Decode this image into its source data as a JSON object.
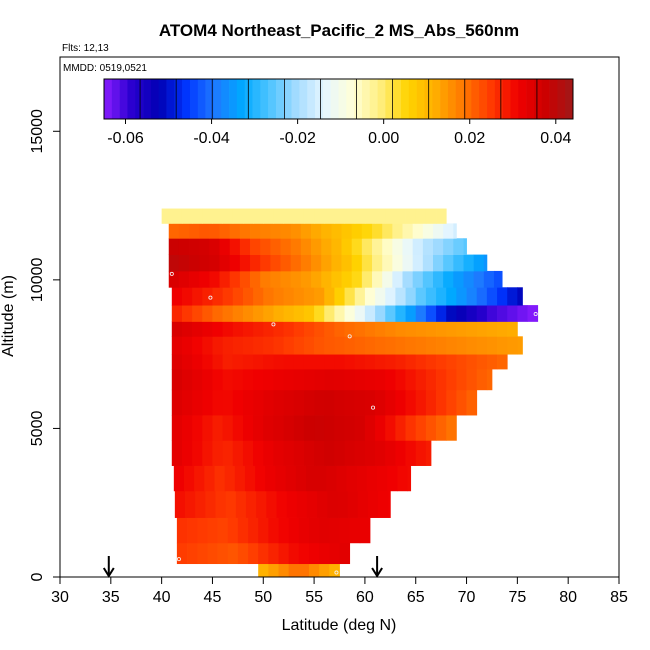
{
  "title": "ATOM4 Northeast_Pacific_2 MS_Abs_560nm",
  "flights_note": "Flts: 12,13",
  "dates_note": "MMDD: 0519,0521",
  "chart_data": {
    "type": "heatmap",
    "xlabel": "Latitude (deg N)",
    "ylabel": "Altitude (m)",
    "xlim": [
      30,
      85
    ],
    "ylim": [
      0,
      17500
    ],
    "x_ticks": [
      "30",
      "35",
      "40",
      "45",
      "50",
      "55",
      "60",
      "65",
      "70",
      "75",
      "80",
      "85"
    ],
    "y_ticks": [
      "0",
      "5000",
      "10000",
      "15000"
    ],
    "colorbar": {
      "min": -0.065,
      "max": 0.044,
      "tick_values": [
        -0.06,
        -0.04,
        -0.02,
        0.0,
        0.02,
        0.04
      ],
      "tick_labels": [
        "-0.06",
        "-0.04",
        "-0.02",
        "0.00",
        "0.02",
        "0.04"
      ],
      "colors": [
        "#8a1dff",
        "#2a00d0",
        "#0000b4",
        "#0036ff",
        "#1e78ff",
        "#00a8ff",
        "#4ec4ff",
        "#a6dcff",
        "#e6f6ff",
        "#ffffd8",
        "#ffef80",
        "#ffd400",
        "#ffae00",
        "#ff7800",
        "#ff3c00",
        "#f00000",
        "#cc0000",
        "#a01818"
      ]
    },
    "flight_marker_latitudes": [
      34.8,
      61.2
    ],
    "profile_points": [
      {
        "lat": 41.0,
        "alt": 10200
      },
      {
        "lat": 44.8,
        "alt": 9400
      },
      {
        "lat": 51.0,
        "alt": 8500
      },
      {
        "lat": 58.5,
        "alt": 8100
      },
      {
        "lat": 60.8,
        "alt": 5700
      },
      {
        "lat": 41.7,
        "alt": 600
      },
      {
        "lat": 57.2,
        "alt": 150
      },
      {
        "lat": 76.8,
        "alt": 8850
      }
    ],
    "bands": [
      {
        "y0": 0,
        "y1": 450,
        "x0": 49.5,
        "x1": 57.5,
        "v": [
          0.01,
          0.02,
          0.01
        ]
      },
      {
        "y0": 450,
        "y1": 1150,
        "x0": 41.5,
        "x1": 58.5,
        "v": [
          0.025,
          0.022,
          0.03,
          0.034
        ]
      },
      {
        "y0": 1150,
        "y1": 2000,
        "x0": 41.5,
        "x1": 60.5,
        "v": [
          0.026,
          0.024,
          0.03,
          0.034,
          0.032
        ]
      },
      {
        "y0": 2000,
        "y1": 2900,
        "x0": 41.3,
        "x1": 62.5,
        "v": [
          0.03,
          0.025,
          0.031,
          0.035,
          0.031
        ]
      },
      {
        "y0": 2900,
        "y1": 3750,
        "x0": 41.2,
        "x1": 64.5,
        "v": [
          0.032,
          0.026,
          0.032,
          0.036,
          0.033,
          0.03
        ]
      },
      {
        "y0": 3750,
        "y1": 4600,
        "x0": 41.0,
        "x1": 66.5,
        "v": [
          0.034,
          0.027,
          0.033,
          0.037,
          0.034,
          0.028
        ]
      },
      {
        "y0": 4600,
        "y1": 5450,
        "x0": 41.0,
        "x1": 69.0,
        "v": [
          0.034,
          0.028,
          0.034,
          0.038,
          0.036,
          0.026,
          0.018
        ]
      },
      {
        "y0": 5450,
        "y1": 6300,
        "x0": 41.0,
        "x1": 71.0,
        "v": [
          0.035,
          0.03,
          0.034,
          0.037,
          0.035,
          0.028,
          0.02
        ]
      },
      {
        "y0": 6300,
        "y1": 7000,
        "x0": 41.0,
        "x1": 72.5,
        "v": [
          0.036,
          0.03,
          0.032,
          0.034,
          0.032,
          0.026,
          0.02
        ]
      },
      {
        "y0": 7000,
        "y1": 7500,
        "x0": 41.0,
        "x1": 74.0,
        "v": [
          0.035,
          0.028,
          0.03,
          0.03,
          0.028,
          0.024,
          0.02
        ]
      },
      {
        "y0": 7500,
        "y1": 8100,
        "x0": 41.0,
        "x1": 75.5,
        "v": [
          0.034,
          0.028,
          0.026,
          0.022,
          0.02,
          0.018,
          0.016,
          0.014
        ]
      },
      {
        "y0": 8100,
        "y1": 8600,
        "x0": 41.0,
        "x1": 75.0,
        "v": [
          0.036,
          0.03,
          0.026,
          0.02,
          0.016,
          0.014,
          0.012
        ]
      },
      {
        "y0": 8600,
        "y1": 9150,
        "x0": 41.0,
        "x1": 77.0,
        "v": [
          0.028,
          0.02,
          0.014,
          0.008,
          -0.01,
          -0.03,
          -0.05,
          -0.06,
          -0.065
        ]
      },
      {
        "y0": 9150,
        "y1": 9750,
        "x0": 41.0,
        "x1": 75.5,
        "v": [
          0.032,
          0.026,
          0.018,
          0.014,
          -0.008,
          -0.026,
          -0.038,
          -0.052
        ]
      },
      {
        "y0": 9750,
        "y1": 10300,
        "x0": 40.7,
        "x1": 73.5,
        "v": [
          0.036,
          0.03,
          0.018,
          0.014,
          0.004,
          -0.02,
          -0.034,
          -0.044
        ]
      },
      {
        "y0": 10300,
        "y1": 10850,
        "x0": 40.7,
        "x1": 72.0,
        "v": [
          0.04,
          0.036,
          0.026,
          0.018,
          0.008,
          -0.008,
          -0.024,
          -0.036
        ]
      },
      {
        "y0": 10850,
        "y1": 11400,
        "x0": 40.7,
        "x1": 70.0,
        "v": [
          0.038,
          0.036,
          0.024,
          0.018,
          0.01,
          -0.004,
          -0.018,
          -0.026
        ]
      },
      {
        "y0": 11400,
        "y1": 11900,
        "x0": 40.7,
        "x1": 69.0,
        "v": [
          0.02,
          0.022,
          0.018,
          0.016,
          0.01,
          0.004,
          -0.006,
          -0.016
        ]
      },
      {
        "y0": 11900,
        "y1": 12400,
        "x0": 40.0,
        "x1": 68.0,
        "v": [
          -0.002,
          -0.002,
          -0.002,
          -0.002
        ]
      }
    ]
  }
}
